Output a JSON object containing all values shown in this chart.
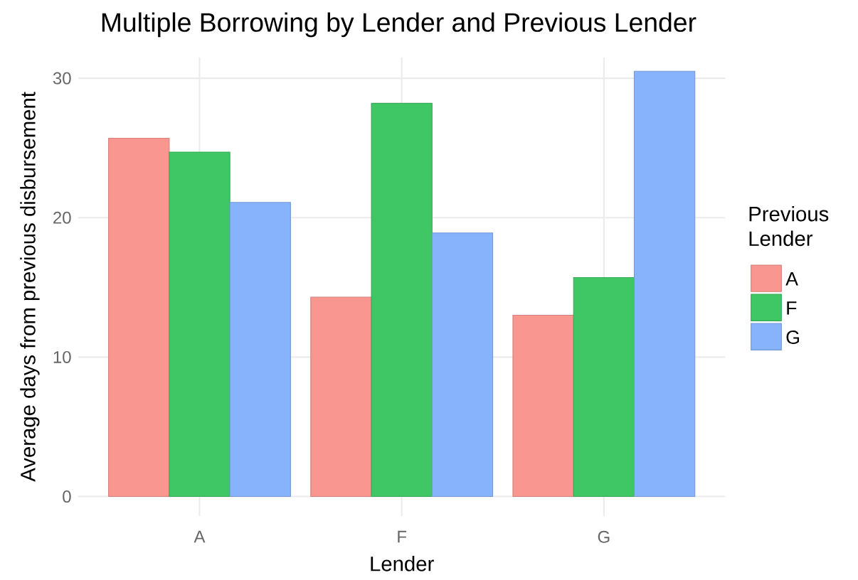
{
  "chart_data": {
    "type": "bar",
    "title": "Multiple Borrowing by Lender and Previous Lender",
    "xlabel": "Lender",
    "ylabel": "Average days from previous disbursement",
    "legend_title": "Previous Lender",
    "categories": [
      "A",
      "F",
      "G"
    ],
    "series": [
      {
        "name": "A",
        "color": "#f8968f",
        "values": [
          25.7,
          14.3,
          13.0
        ]
      },
      {
        "name": "F",
        "color": "#3ec764",
        "values": [
          24.7,
          28.2,
          15.7
        ]
      },
      {
        "name": "G",
        "color": "#87b3fc",
        "values": [
          21.1,
          18.9,
          30.5
        ]
      }
    ],
    "ylim": [
      -1.4,
      31.5
    ],
    "yticks": [
      0,
      10,
      20,
      30
    ],
    "grid": true,
    "legend": "right"
  }
}
